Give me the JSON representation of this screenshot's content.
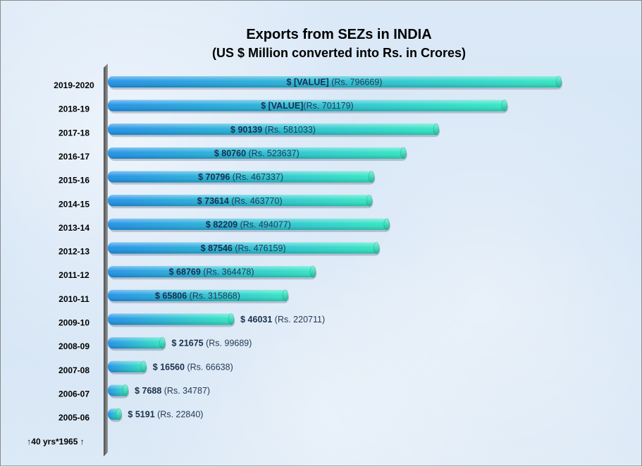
{
  "chart_data": {
    "type": "bar",
    "orientation": "horizontal",
    "title": "Exports from SEZs in INDIA",
    "subtitle": "(US $ Million converted into Rs. in Crores)",
    "categories": [
      "2019-2020",
      "2018-19",
      "2017-18",
      "2016-17",
      "2015-16",
      "2014-15",
      "2013-14",
      "2012-13",
      "2011-12",
      "2010-11",
      "2009-10",
      "2008-09",
      "2007-08",
      "2006-07",
      "2005-06"
    ],
    "series": [
      {
        "values": [
          796669,
          701179,
          581033,
          523637,
          467337,
          463770,
          494077,
          476159,
          364478,
          315868,
          220711,
          99689,
          66638,
          34787,
          22840
        ]
      }
    ],
    "data_labels": [
      {
        "usd": "$ [VALUE]",
        "rs": " (Rs. 796669)"
      },
      {
        "usd": "$ [VALUE]",
        "rs": "(Rs. 701179)"
      },
      {
        "usd": "$ 90139",
        "rs": " (Rs. 581033)"
      },
      {
        "usd": "$ 80760",
        "rs": "  (Rs. 523637)"
      },
      {
        "usd": "$ 70796",
        "rs": " (Rs. 467337)"
      },
      {
        "usd": "$ 73614",
        "rs": " (Rs. 463770)"
      },
      {
        "usd": "$ 82209",
        "rs": "  (Rs. 494077)"
      },
      {
        "usd": "$ 87546",
        "rs": " (Rs. 476159)"
      },
      {
        "usd": "$ 68769",
        "rs": " (Rs. 364478)"
      },
      {
        "usd": "$ 65806",
        "rs": " (Rs. 315868)"
      },
      {
        "usd": "$ 46031",
        "rs": " (Rs. 220711)"
      },
      {
        "usd": "$ 21675",
        "rs": " (Rs. 99689)"
      },
      {
        "usd": "$ 16560",
        "rs": " (Rs. 66638)"
      },
      {
        "usd": "$ 7688",
        "rs": " (Rs. 34787)"
      },
      {
        "usd": "$ 5191",
        "rs": " (Rs. 22840)"
      }
    ],
    "footer_label": "↑40 yrs*1965 ↑",
    "xlim": [
      0,
      796669
    ],
    "grid": false,
    "legend": "none",
    "colors": {
      "bar_start": "#1e90e6",
      "bar_end": "#2fe6c2",
      "axis_wall": "#6b6b6b"
    }
  }
}
